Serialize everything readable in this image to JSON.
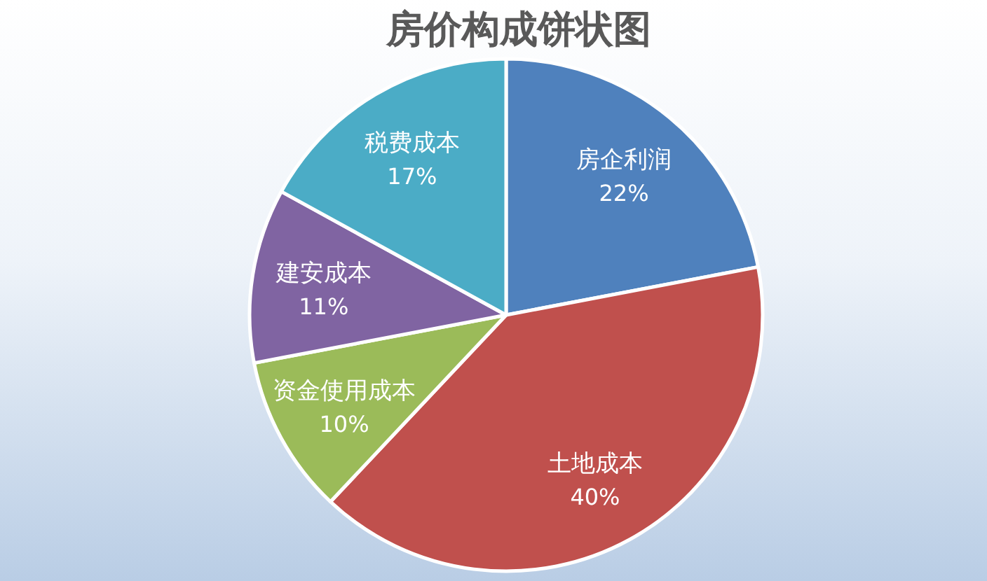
{
  "chart_data": {
    "type": "pie",
    "title": "房价构成饼状图",
    "categories": [
      "房企利润",
      "土地成本",
      "资金使用成本",
      "建安成本",
      "税费成本"
    ],
    "values": [
      22,
      40,
      10,
      11,
      17
    ],
    "colors": [
      "#4f81bd",
      "#c0504d",
      "#9bbb59",
      "#8064a2",
      "#4bacc6"
    ],
    "value_labels": [
      "22%",
      "40%",
      "10%",
      "11%",
      "17%"
    ]
  }
}
